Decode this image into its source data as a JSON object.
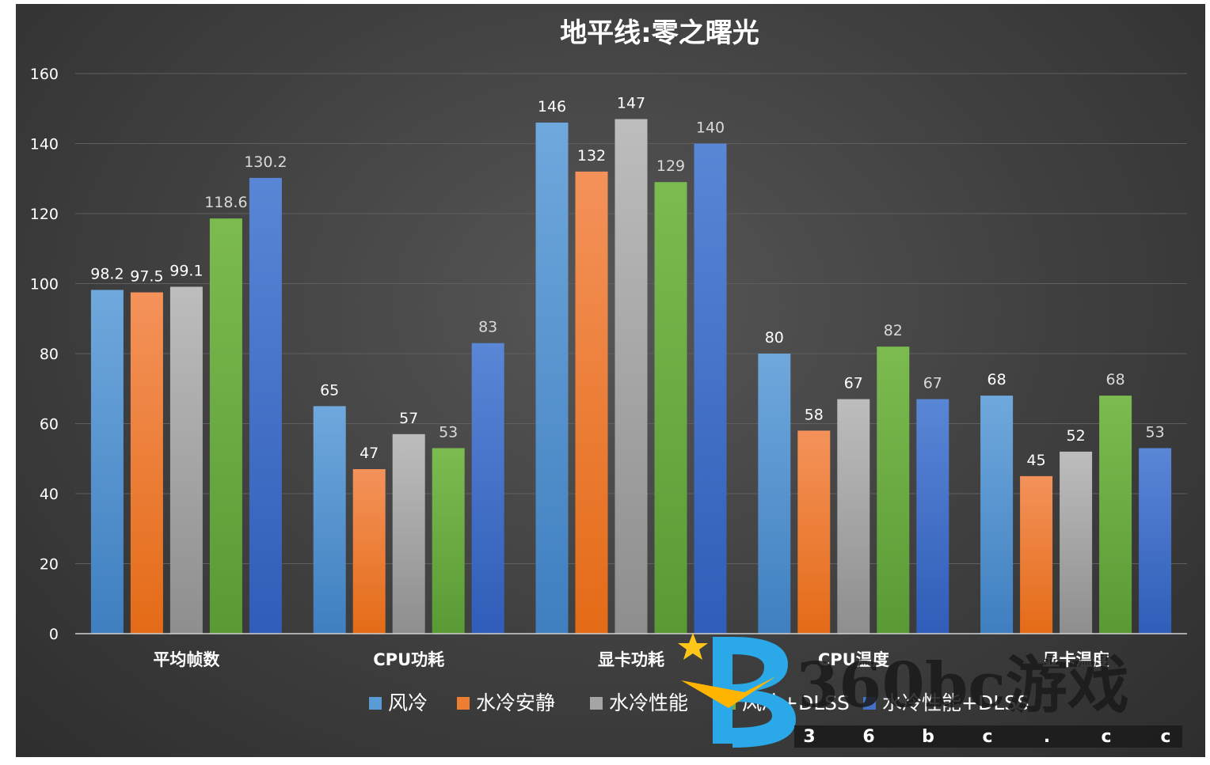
{
  "chart_data": {
    "type": "bar",
    "title": "地平线:零之曙光",
    "categories": [
      "平均帧数",
      "CPU功耗",
      "显卡功耗",
      "CPU温度",
      "显卡温度"
    ],
    "series": [
      {
        "name": "风冷",
        "values": [
          98.2,
          65,
          146,
          80,
          68
        ],
        "color": "#5b9bd5"
      },
      {
        "name": "水冷安静",
        "values": [
          97.5,
          47,
          132,
          58,
          45
        ],
        "color": "#ed7d31"
      },
      {
        "name": "水冷性能",
        "values": [
          99.1,
          57,
          147,
          67,
          52
        ],
        "color": "#a5a5a5"
      },
      {
        "name": "风冷+DLSS",
        "values": [
          118.6,
          53,
          129,
          82,
          68
        ],
        "color": "#70ad47"
      },
      {
        "name": "水冷性能+DLSS",
        "values": [
          130.2,
          83,
          140,
          67,
          53
        ],
        "color": "#4472c4"
      }
    ],
    "ylim": [
      0,
      160
    ],
    "yticks": [
      0,
      20,
      40,
      60,
      80,
      100,
      120,
      140,
      160
    ],
    "grid": true,
    "legend": "bottom"
  },
  "watermark": {
    "logo": "360bc游戏",
    "domain_chars": [
      "3",
      "6",
      "b",
      "c",
      ".",
      "c",
      "c"
    ]
  }
}
